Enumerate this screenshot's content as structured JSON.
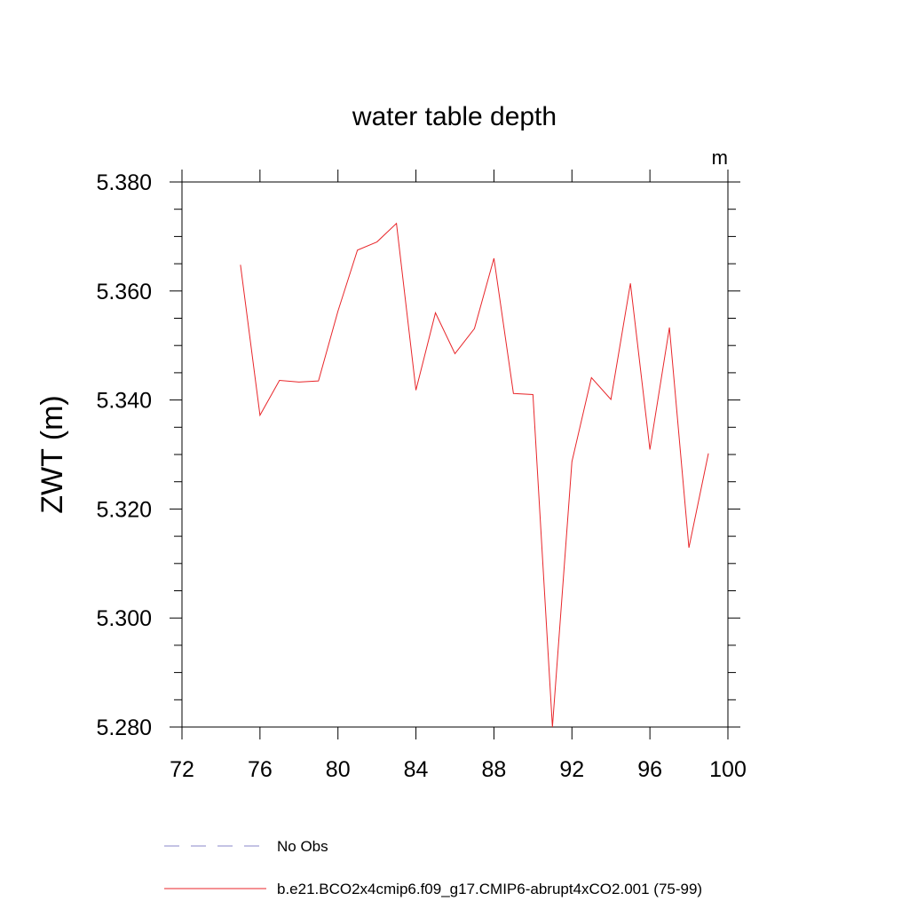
{
  "chart_data": {
    "type": "line",
    "title": "water table depth",
    "units_label": "m",
    "ylabel": "ZWT  (m)",
    "xlabel": "",
    "xlim": [
      72,
      100
    ],
    "ylim": [
      5.28,
      5.38
    ],
    "xticks": [
      72,
      76,
      80,
      84,
      88,
      92,
      96,
      100
    ],
    "xtick_labels": [
      "72",
      "76",
      "80",
      "84",
      "88",
      "92",
      "96",
      "100"
    ],
    "yticks": [
      5.28,
      5.3,
      5.32,
      5.34,
      5.36,
      5.38
    ],
    "ytick_labels": [
      "5.280",
      "5.300",
      "5.320",
      "5.340",
      "5.360",
      "5.380"
    ],
    "grid": false,
    "legend_position": "bottom",
    "legend": [
      {
        "label": "No Obs",
        "color": "#8a87c9",
        "dash": "dashed"
      },
      {
        "label": "b.e21.BCO2x4cmip6.f09_g17.CMIP6-abrupt4xCO2.001 (75-99)",
        "color": "#e8262a",
        "dash": "solid"
      }
    ],
    "series": [
      {
        "color": "#e8262a",
        "x": [
          75,
          76,
          77,
          78,
          79,
          80,
          81,
          82,
          83,
          84,
          85,
          86,
          87,
          88,
          89,
          90,
          91,
          92,
          93,
          94,
          95,
          96,
          97,
          98,
          99
        ],
        "values": [
          5.3648,
          5.3372,
          5.3436,
          5.3433,
          5.3435,
          5.3563,
          5.3675,
          5.369,
          5.3724,
          5.3418,
          5.356,
          5.3485,
          5.3531,
          5.366,
          5.3412,
          5.341,
          5.28,
          5.3287,
          5.3441,
          5.3401,
          5.3614,
          5.3309,
          5.3533,
          5.3129,
          5.3302
        ]
      }
    ]
  }
}
